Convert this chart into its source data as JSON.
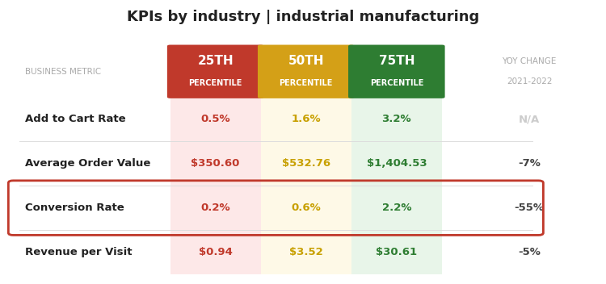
{
  "title": "KPIs by industry | industrial manufacturing",
  "col_headers": [
    "25TH\nPERCENTILE",
    "50TH\nPERCENTILE",
    "75TH\nPERCENTILE",
    "YOY CHANGE\n2021-2022"
  ],
  "header_bg_colors": [
    "#c0392b",
    "#d4a017",
    "#2e7d32",
    "#ffffff"
  ],
  "row_labels": [
    "Add to Cart Rate",
    "Average Order Value",
    "Conversion Rate",
    "Revenue per Visit"
  ],
  "col1_values": [
    "0.5%",
    "$350.60",
    "0.2%",
    "$0.94"
  ],
  "col2_values": [
    "1.6%",
    "$532.76",
    "0.6%",
    "$3.52"
  ],
  "col3_values": [
    "3.2%",
    "$1,404.53",
    "2.2%",
    "$30.61"
  ],
  "col4_values": [
    "N/A",
    "-7%",
    "-55%",
    "-5%"
  ],
  "col1_text_color": "#c0392b",
  "col2_text_color": "#c8a000",
  "col3_text_color": "#2e7d32",
  "col4_text_color": "#444444",
  "col4_na_color": "#cccccc",
  "cell_bg_col1": "#fde8e8",
  "cell_bg_col2": "#fef9e7",
  "cell_bg_col3": "#e8f5e9",
  "highlight_row": 2,
  "highlight_border_color": "#c0392b",
  "row_divider_color": "#dddddd",
  "bg_color": "#ffffff",
  "business_metric_label": "BUSINESS METRIC",
  "business_metric_color": "#aaaaaa"
}
